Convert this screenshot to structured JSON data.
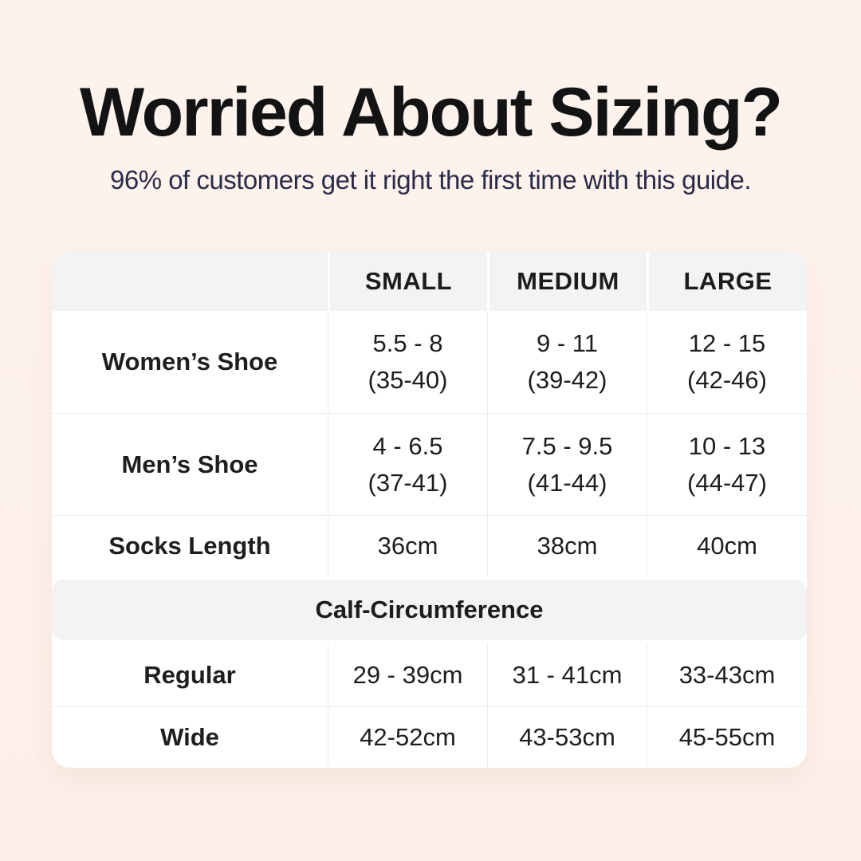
{
  "header": {
    "title": "Worried About Sizing?",
    "subtitle": "96% of customers get it right the first time with this guide."
  },
  "table": {
    "columns": [
      "",
      "SMALL",
      "MEDIUM",
      "LARGE"
    ],
    "rows": [
      {
        "label": "Women’s Shoe",
        "cells": [
          {
            "line1": "5.5 - 8",
            "line2": "(35-40)"
          },
          {
            "line1": "9 - 11",
            "line2": "(39-42)"
          },
          {
            "line1": "12 - 15",
            "line2": "(42-46)"
          }
        ]
      },
      {
        "label": "Men’s Shoe",
        "cells": [
          {
            "line1": "4 - 6.5",
            "line2": "(37-41)"
          },
          {
            "line1": "7.5 - 9.5",
            "line2": "(41-44)"
          },
          {
            "line1": "10 - 13",
            "line2": "(44-47)"
          }
        ]
      },
      {
        "label": "Socks Length",
        "cells": [
          {
            "line1": "36cm"
          },
          {
            "line1": "38cm"
          },
          {
            "line1": "40cm"
          }
        ]
      }
    ],
    "section_header": "Calf-Circumference",
    "calf_rows": [
      {
        "label": "Regular",
        "cells": [
          {
            "line1": "29 - 39cm"
          },
          {
            "line1": "31 - 41cm"
          },
          {
            "line1": "33-43cm"
          }
        ]
      },
      {
        "label": "Wide",
        "cells": [
          {
            "line1": "42-52cm"
          },
          {
            "line1": "43-53cm"
          },
          {
            "line1": "45-55cm"
          }
        ]
      }
    ]
  },
  "colors": {
    "page_background": "#fcf1ea",
    "table_background": "#ffffff",
    "band_background": "#f4f3f3",
    "title_text": "#131313",
    "subtitle_text": "#2b2b49",
    "cell_text": "#1e1e1e",
    "divider": "#ececec"
  },
  "chart_data": {
    "type": "table",
    "title": "Worried About Sizing?",
    "subtitle": "96% of customers get it right the first time with this guide.",
    "columns": [
      "",
      "SMALL",
      "MEDIUM",
      "LARGE"
    ],
    "rows": [
      {
        "label": "Women’s Shoe",
        "values": [
          "5.5 - 8 (35-40)",
          "9 - 11 (39-42)",
          "12 - 15 (42-46)"
        ]
      },
      {
        "label": "Men’s Shoe",
        "values": [
          "4 - 6.5 (37-41)",
          "7.5 - 9.5 (41-44)",
          "10 - 13 (44-47)"
        ]
      },
      {
        "label": "Socks Length",
        "values": [
          "36cm",
          "38cm",
          "40cm"
        ]
      },
      {
        "label": "Calf-Circumference",
        "section": true,
        "values": []
      },
      {
        "label": "Regular",
        "values": [
          "29 - 39cm",
          "31 - 41cm",
          "33-43cm"
        ]
      },
      {
        "label": "Wide",
        "values": [
          "42-52cm",
          "43-53cm",
          "45-55cm"
        ]
      }
    ],
    "layout": {
      "grid": "light-gray dividers",
      "header_fill": "#f4f3f3",
      "legend_position": "none"
    }
  }
}
